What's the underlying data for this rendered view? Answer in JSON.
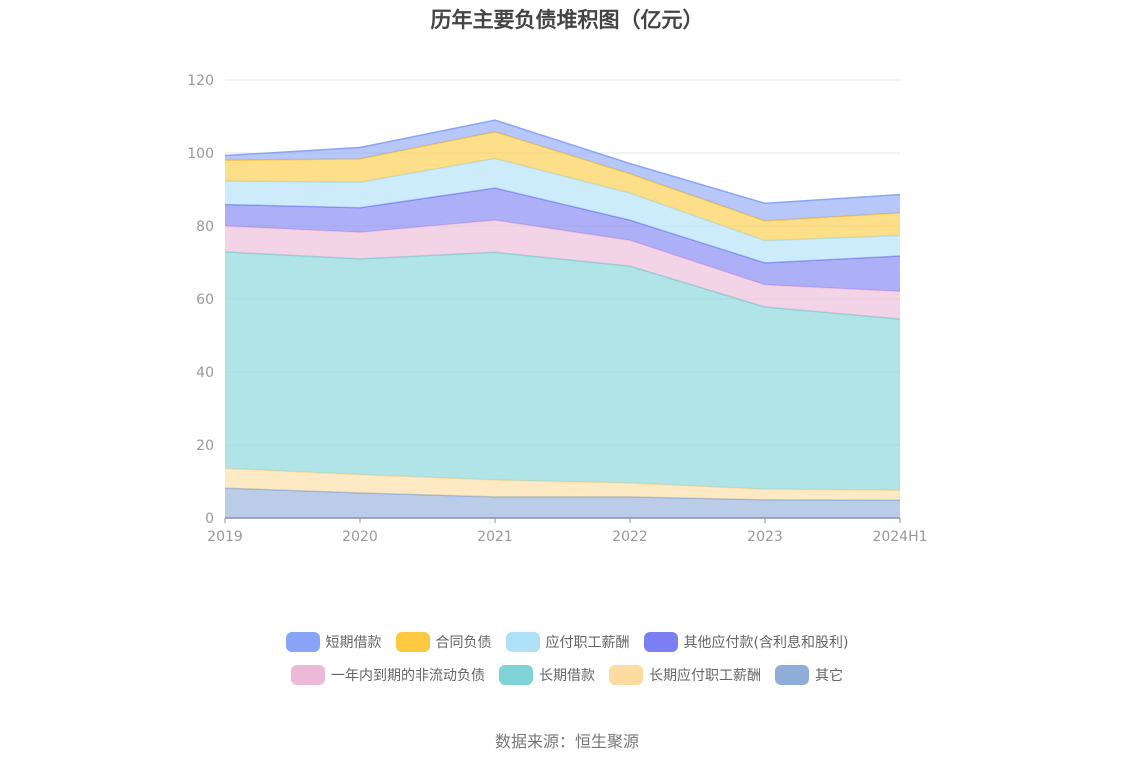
{
  "title": "历年主要负债堆积图（亿元）",
  "source": "数据来源：恒生聚源",
  "chart_data": {
    "type": "area",
    "stacked": true,
    "title": "历年主要负债堆积图（亿元）",
    "categories": [
      "2019",
      "2020",
      "2021",
      "2022",
      "2023",
      "2024H1"
    ],
    "ylim": [
      0,
      120
    ],
    "yticks": [
      "0",
      "20",
      "40",
      "60",
      "80",
      "100",
      "120"
    ],
    "grid": true,
    "legend_position": "bottom",
    "series": [
      {
        "name": "其它",
        "color": "#8fadd9",
        "values": [
          8.2,
          6.9,
          5.8,
          5.8,
          5.0,
          4.9
        ]
      },
      {
        "name": "长期应付职工薪酬",
        "color": "#fddba1",
        "values": [
          5.4,
          5.0,
          4.6,
          3.8,
          2.9,
          2.7
        ]
      },
      {
        "name": "长期借款",
        "color": "#7fd3d6",
        "values": [
          59.3,
          59.1,
          62.4,
          59.4,
          49.9,
          46.9
        ]
      },
      {
        "name": "一年内到期的非流动负债",
        "color": "#ecb9d9",
        "values": [
          7.1,
          7.3,
          8.8,
          7.1,
          6.1,
          7.6
        ]
      },
      {
        "name": "其他应付款(含利息和股利)",
        "color": "#7c7ff2",
        "values": [
          5.9,
          6.7,
          8.8,
          5.5,
          6.0,
          9.7
        ]
      },
      {
        "name": "应付职工薪酬",
        "color": "#aee0f8",
        "values": [
          6.4,
          7.0,
          8.1,
          7.4,
          6.1,
          5.6
        ]
      },
      {
        "name": "合同负债",
        "color": "#fcc941",
        "values": [
          5.7,
          6.4,
          7.3,
          5.3,
          5.4,
          6.2
        ]
      },
      {
        "name": "短期借款",
        "color": "#8aa4f7",
        "values": [
          1.3,
          3.1,
          3.2,
          2.8,
          4.8,
          5.0
        ]
      }
    ]
  },
  "legend": {
    "row1": [
      {
        "name": "短期借款",
        "color": "#8aa4f7"
      },
      {
        "name": "合同负债",
        "color": "#fcc941"
      },
      {
        "name": "应付职工薪酬",
        "color": "#aee0f8"
      },
      {
        "name": "其他应付款(含利息和股利)",
        "color": "#7c7ff2"
      }
    ],
    "row2": [
      {
        "name": "一年内到期的非流动负债",
        "color": "#ecb9d9"
      },
      {
        "name": "长期借款",
        "color": "#7fd3d6"
      },
      {
        "name": "长期应付职工薪酬",
        "color": "#fddba1"
      },
      {
        "name": "其它",
        "color": "#8fadd9"
      }
    ]
  }
}
